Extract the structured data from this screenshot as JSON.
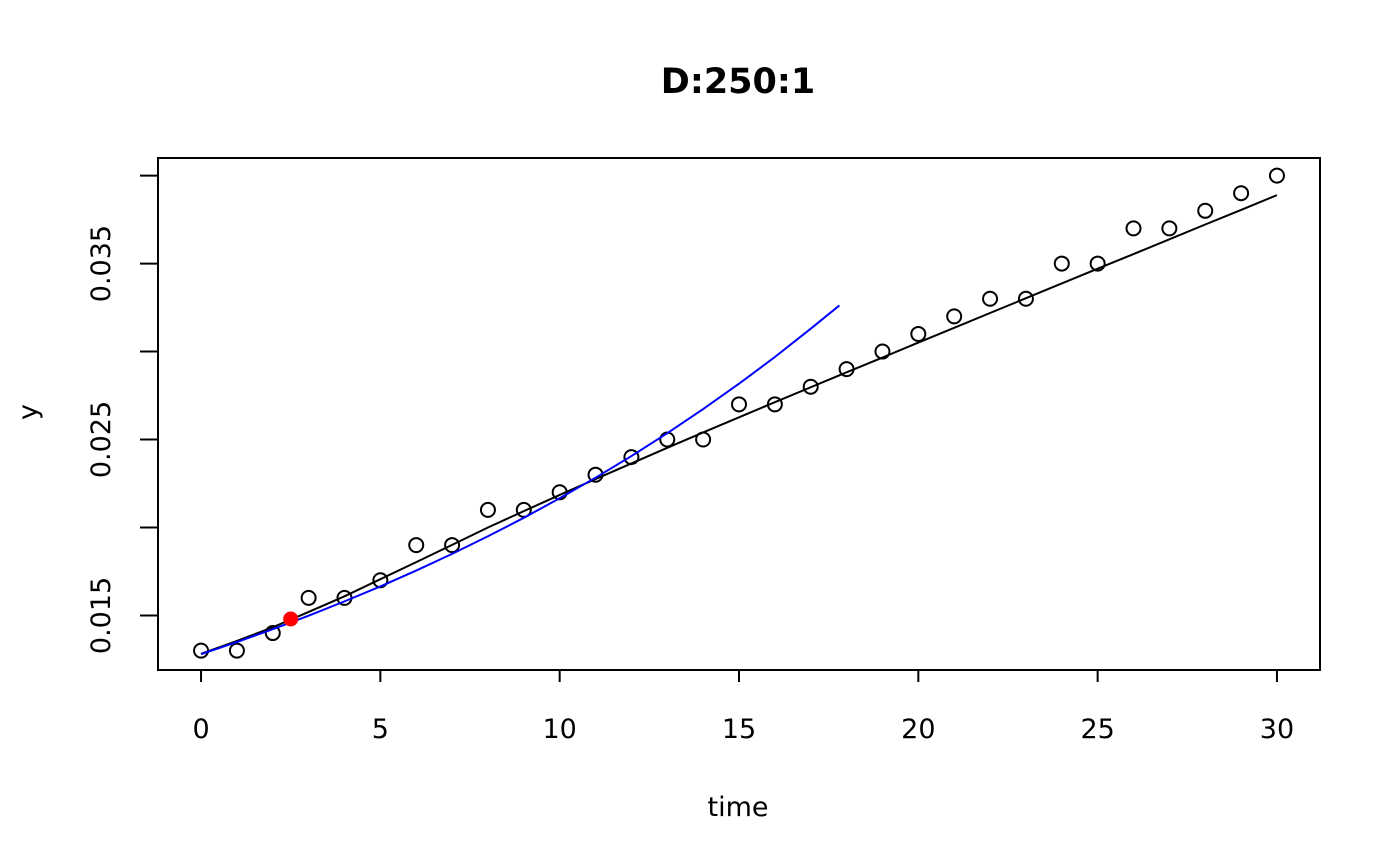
{
  "chart_data": {
    "type": "scatter",
    "title": "D:250:1",
    "xlabel": "time",
    "ylabel": "y",
    "xlim": [
      -1.2,
      31.2
    ],
    "ylim": [
      0.0119,
      0.041
    ],
    "xticks": [
      0,
      5,
      10,
      15,
      20,
      25,
      30
    ],
    "xtick_labels": [
      "0",
      "5",
      "10",
      "15",
      "20",
      "25",
      "30"
    ],
    "yticks": [
      0.015,
      0.02,
      0.025,
      0.03,
      0.035,
      0.04
    ],
    "ytick_labels": [
      "0.015",
      "",
      "0.025",
      "",
      "0.035",
      ""
    ],
    "grid": false,
    "legend": "none",
    "series": [
      {
        "kind": "points",
        "marker": "open-circle",
        "color": "#000000",
        "x": [
          0,
          1,
          2,
          3,
          4,
          5,
          6,
          7,
          8,
          9,
          10,
          11,
          12,
          13,
          14,
          15,
          16,
          17,
          18,
          19,
          20,
          21,
          22,
          23,
          24,
          25,
          26,
          27,
          28,
          29,
          30
        ],
        "y": [
          0.013,
          0.013,
          0.014,
          0.016,
          0.016,
          0.017,
          0.019,
          0.019,
          0.021,
          0.021,
          0.022,
          0.023,
          0.024,
          0.025,
          0.025,
          0.027,
          0.027,
          0.028,
          0.029,
          0.03,
          0.031,
          0.032,
          0.033,
          0.033,
          0.035,
          0.035,
          0.037,
          0.037,
          0.038,
          0.039,
          0.04
        ]
      },
      {
        "kind": "line",
        "color": "#000000",
        "x": [
          0,
          1,
          2,
          3,
          4,
          5,
          6,
          7,
          8,
          9,
          10,
          11,
          12,
          13,
          14,
          15,
          16,
          17,
          18,
          19,
          20,
          21,
          22,
          23,
          24,
          25,
          26,
          27,
          28,
          29,
          30
        ],
        "y": [
          0.01282,
          0.01355,
          0.01433,
          0.0152,
          0.01609,
          0.01706,
          0.01803,
          0.01901,
          0.02,
          0.02093,
          0.02185,
          0.02275,
          0.02364,
          0.02453,
          0.0254,
          0.02626,
          0.02712,
          0.02797,
          0.02882,
          0.02966,
          0.03051,
          0.03135,
          0.03219,
          0.03303,
          0.03387,
          0.03471,
          0.03554,
          0.03638,
          0.03722,
          0.03805,
          0.03889
        ]
      },
      {
        "kind": "line",
        "color": "#0000ff",
        "x": [
          0,
          1,
          2,
          3,
          4,
          5,
          6,
          7,
          8,
          9,
          10,
          11,
          12,
          13,
          14,
          15,
          16,
          17,
          17.8
        ],
        "y": [
          0.0128,
          0.01349,
          0.01422,
          0.01499,
          0.0158,
          0.01665,
          0.01755,
          0.0185,
          0.0195,
          0.02055,
          0.02166,
          0.02283,
          0.02406,
          0.02536,
          0.02673,
          0.02817,
          0.02969,
          0.0313,
          0.03262
        ]
      },
      {
        "kind": "points",
        "marker": "filled-circle",
        "color": "#ff0000",
        "x": [
          2.5
        ],
        "y": [
          0.0148
        ]
      }
    ]
  }
}
